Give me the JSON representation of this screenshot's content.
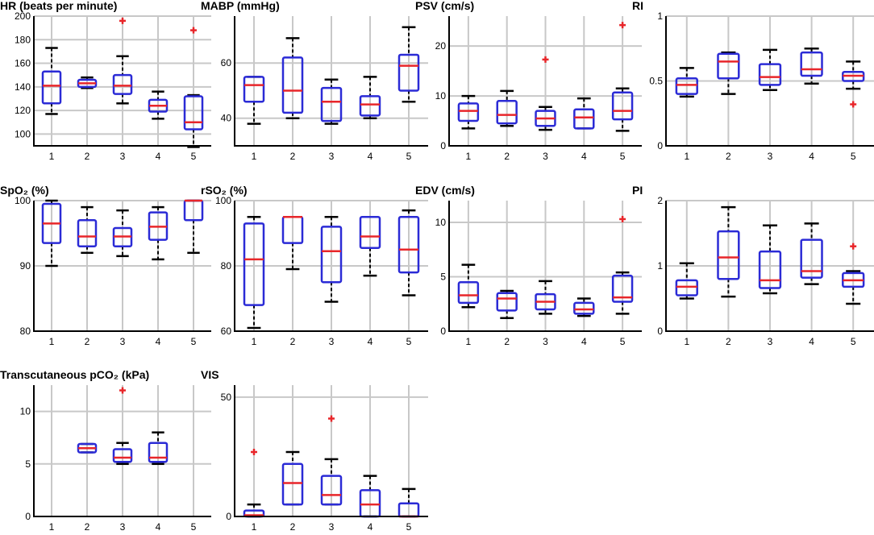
{
  "colors": {
    "box": "#2b2bd6",
    "median": "#e8262a",
    "whisker": "#000000",
    "outlier": "#e8262a",
    "grid": "#c8c8c8"
  },
  "chart_data": [
    {
      "type": "boxplot",
      "title": "HR (beats per minute)",
      "categories": [
        "1",
        "2",
        "3",
        "4",
        "5"
      ],
      "ylim": [
        90,
        200
      ],
      "yticks": [
        100,
        120,
        140,
        160,
        180,
        200
      ],
      "boxes": [
        {
          "lo": 117,
          "q1": 126,
          "med": 141,
          "q3": 153,
          "hi": 173,
          "out": []
        },
        {
          "lo": 139,
          "q1": 140,
          "med": 143,
          "q3": 146,
          "hi": 148,
          "out": []
        },
        {
          "lo": 126,
          "q1": 134,
          "med": 141,
          "q3": 150,
          "hi": 166,
          "out": [
            196
          ]
        },
        {
          "lo": 113,
          "q1": 119,
          "med": 124,
          "q3": 129,
          "hi": 136,
          "out": []
        },
        {
          "lo": 89,
          "q1": 104,
          "med": 110,
          "q3": 132,
          "hi": 133,
          "out": [
            188
          ]
        }
      ]
    },
    {
      "type": "boxplot",
      "title": "MABP (mmHg)",
      "categories": [
        "1",
        "2",
        "3",
        "4",
        "5"
      ],
      "ylim": [
        30,
        77
      ],
      "yticks": [
        40,
        60
      ],
      "boxes": [
        {
          "lo": 38,
          "q1": 46,
          "med": 52,
          "q3": 55,
          "hi": 55,
          "out": []
        },
        {
          "lo": 40,
          "q1": 42,
          "med": 50,
          "q3": 62,
          "hi": 69,
          "out": []
        },
        {
          "lo": 38,
          "q1": 39,
          "med": 46,
          "q3": 51,
          "hi": 54,
          "out": []
        },
        {
          "lo": 40,
          "q1": 41,
          "med": 45,
          "q3": 48,
          "hi": 55,
          "out": []
        },
        {
          "lo": 46,
          "q1": 50,
          "med": 59,
          "q3": 63,
          "hi": 73,
          "out": []
        }
      ]
    },
    {
      "type": "boxplot",
      "title": "PSV (cm/s)",
      "categories": [
        "1",
        "2",
        "3",
        "4",
        "5"
      ],
      "ylim": [
        0,
        26
      ],
      "yticks": [
        0,
        10,
        20
      ],
      "boxes": [
        {
          "lo": 3.5,
          "q1": 5,
          "med": 7,
          "q3": 8.5,
          "hi": 10,
          "out": []
        },
        {
          "lo": 4,
          "q1": 4.5,
          "med": 6.2,
          "q3": 9,
          "hi": 11,
          "out": []
        },
        {
          "lo": 3.2,
          "q1": 4,
          "med": 5.5,
          "q3": 7,
          "hi": 7.8,
          "out": [
            17.3
          ]
        },
        {
          "lo": 3.5,
          "q1": 3.5,
          "med": 5.7,
          "q3": 7.3,
          "hi": 9.5,
          "out": []
        },
        {
          "lo": 3,
          "q1": 5.3,
          "med": 7,
          "q3": 10.7,
          "hi": 11.5,
          "out": [
            24.2
          ]
        }
      ]
    },
    {
      "type": "boxplot",
      "title": "RI",
      "categories": [
        "1",
        "2",
        "3",
        "4",
        "5"
      ],
      "ylim": [
        0,
        1
      ],
      "yticks": [
        0,
        0.5,
        1
      ],
      "boxes": [
        {
          "lo": 0.38,
          "q1": 0.4,
          "med": 0.47,
          "q3": 0.52,
          "hi": 0.6,
          "out": []
        },
        {
          "lo": 0.4,
          "q1": 0.52,
          "med": 0.65,
          "q3": 0.71,
          "hi": 0.72,
          "out": []
        },
        {
          "lo": 0.43,
          "q1": 0.47,
          "med": 0.53,
          "q3": 0.63,
          "hi": 0.74,
          "out": []
        },
        {
          "lo": 0.48,
          "q1": 0.54,
          "med": 0.59,
          "q3": 0.72,
          "hi": 0.75,
          "out": []
        },
        {
          "lo": 0.44,
          "q1": 0.5,
          "med": 0.54,
          "q3": 0.57,
          "hi": 0.65,
          "out": [
            0.32
          ]
        }
      ]
    },
    {
      "type": "boxplot",
      "title": "SpO₂ (%)",
      "categories": [
        "1",
        "2",
        "3",
        "4",
        "5"
      ],
      "ylim": [
        80,
        100
      ],
      "yticks": [
        80,
        90,
        100
      ],
      "boxes": [
        {
          "lo": 90,
          "q1": 93.5,
          "med": 96.5,
          "q3": 99.5,
          "hi": 100,
          "out": []
        },
        {
          "lo": 92,
          "q1": 93,
          "med": 94.5,
          "q3": 97,
          "hi": 99,
          "out": []
        },
        {
          "lo": 91.5,
          "q1": 93,
          "med": 94.5,
          "q3": 95.8,
          "hi": 98.5,
          "out": []
        },
        {
          "lo": 91,
          "q1": 94,
          "med": 96,
          "q3": 98.2,
          "hi": 99,
          "out": []
        },
        {
          "lo": 92,
          "q1": 97,
          "med": 100,
          "q3": 100,
          "hi": 100,
          "out": []
        }
      ]
    },
    {
      "type": "boxplot",
      "title": "rSO₂ (%)",
      "categories": [
        "1",
        "2",
        "3",
        "4",
        "5"
      ],
      "ylim": [
        60,
        100
      ],
      "yticks": [
        60,
        80,
        100
      ],
      "boxes": [
        {
          "lo": 61,
          "q1": 68,
          "med": 82,
          "q3": 93,
          "hi": 95,
          "out": []
        },
        {
          "lo": 79,
          "q1": 87,
          "med": 95,
          "q3": 95,
          "hi": 95,
          "out": []
        },
        {
          "lo": 69,
          "q1": 75,
          "med": 84.5,
          "q3": 92,
          "hi": 95,
          "out": []
        },
        {
          "lo": 77,
          "q1": 85.5,
          "med": 89,
          "q3": 95,
          "hi": 95,
          "out": []
        },
        {
          "lo": 71,
          "q1": 78,
          "med": 85,
          "q3": 95,
          "hi": 97,
          "out": []
        }
      ]
    },
    {
      "type": "boxplot",
      "title": "EDV (cm/s)",
      "categories": [
        "1",
        "2",
        "3",
        "4",
        "5"
      ],
      "ylim": [
        0,
        12
      ],
      "yticks": [
        0,
        5,
        10
      ],
      "boxes": [
        {
          "lo": 2.2,
          "q1": 2.6,
          "med": 3.3,
          "q3": 4.5,
          "hi": 6.1,
          "out": []
        },
        {
          "lo": 1.2,
          "q1": 1.9,
          "med": 3,
          "q3": 3.5,
          "hi": 3.7,
          "out": []
        },
        {
          "lo": 1.6,
          "q1": 2,
          "med": 2.7,
          "q3": 3.4,
          "hi": 4.6,
          "out": []
        },
        {
          "lo": 1.4,
          "q1": 1.6,
          "med": 2,
          "q3": 2.6,
          "hi": 3,
          "out": []
        },
        {
          "lo": 1.6,
          "q1": 2.7,
          "med": 3.1,
          "q3": 5.1,
          "hi": 5.4,
          "out": [
            10.3
          ]
        }
      ]
    },
    {
      "type": "boxplot",
      "title": "PI",
      "categories": [
        "1",
        "2",
        "3",
        "4",
        "5"
      ],
      "ylim": [
        0,
        2
      ],
      "yticks": [
        0,
        1,
        2
      ],
      "boxes": [
        {
          "lo": 0.5,
          "q1": 0.55,
          "med": 0.68,
          "q3": 0.78,
          "hi": 1.04,
          "out": []
        },
        {
          "lo": 0.53,
          "q1": 0.8,
          "med": 1.13,
          "q3": 1.53,
          "hi": 1.9,
          "out": []
        },
        {
          "lo": 0.58,
          "q1": 0.66,
          "med": 0.78,
          "q3": 1.22,
          "hi": 1.62,
          "out": []
        },
        {
          "lo": 0.72,
          "q1": 0.82,
          "med": 0.92,
          "q3": 1.4,
          "hi": 1.65,
          "out": []
        },
        {
          "lo": 0.42,
          "q1": 0.68,
          "med": 0.78,
          "q3": 0.89,
          "hi": 0.92,
          "out": [
            1.3
          ]
        }
      ]
    },
    {
      "type": "boxplot",
      "title": "Transcutaneous pCO₂ (kPa)",
      "categories": [
        "1",
        "2",
        "3",
        "4",
        "5"
      ],
      "ylim": [
        0,
        12.5
      ],
      "yticks": [
        0,
        5,
        10
      ],
      "boxes": [
        null,
        {
          "lo": 6.1,
          "q1": 6.1,
          "med": 6.5,
          "q3": 6.9,
          "hi": 6.9,
          "out": []
        },
        {
          "lo": 5,
          "q1": 5.2,
          "med": 5.6,
          "q3": 6.4,
          "hi": 7,
          "out": [
            12
          ]
        },
        {
          "lo": 5,
          "q1": 5.2,
          "med": 5.6,
          "q3": 7,
          "hi": 8,
          "out": []
        },
        null
      ]
    },
    {
      "type": "boxplot",
      "title": "VIS",
      "categories": [
        "1",
        "2",
        "3",
        "4",
        "5"
      ],
      "ylim": [
        0,
        55
      ],
      "yticks": [
        0,
        50
      ],
      "boxes": [
        {
          "lo": 0,
          "q1": 0,
          "med": 0.5,
          "q3": 2.5,
          "hi": 5,
          "out": [
            27
          ]
        },
        {
          "lo": 5,
          "q1": 5,
          "med": 14,
          "q3": 22,
          "hi": 27,
          "out": []
        },
        {
          "lo": 5,
          "q1": 5,
          "med": 9,
          "q3": 17,
          "hi": 24,
          "out": [
            41
          ]
        },
        {
          "lo": 0,
          "q1": 0,
          "med": 5,
          "q3": 11,
          "hi": 17,
          "out": []
        },
        {
          "lo": 0,
          "q1": 0,
          "med": 0,
          "q3": 5.5,
          "hi": 11.5,
          "out": []
        }
      ]
    }
  ]
}
